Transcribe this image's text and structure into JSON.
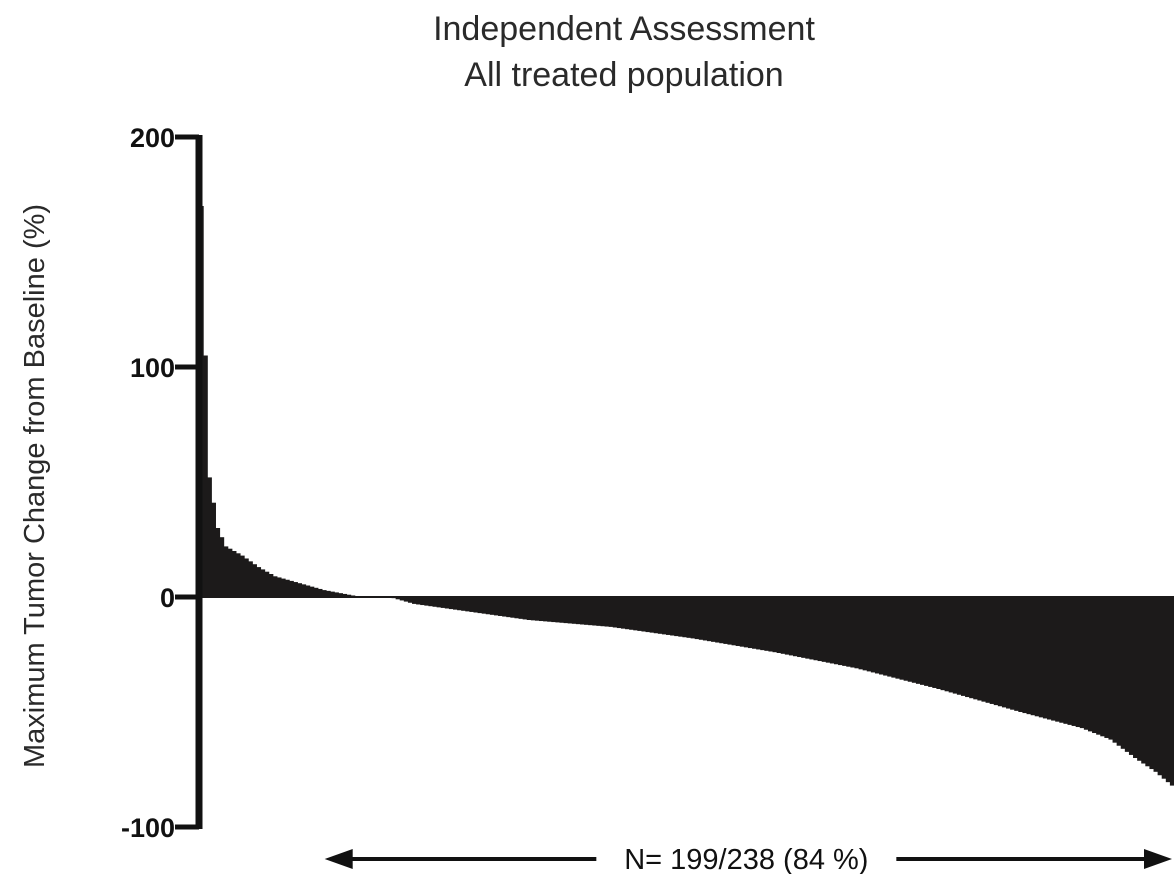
{
  "chart_data": {
    "type": "bar",
    "title": "Independent Assessment",
    "subtitle": "All treated population",
    "xlabel": "",
    "ylabel": "Maximum Tumor Change from Baseline (%)",
    "ylim": [
      -100,
      200
    ],
    "yticks": [
      {
        "value": 200,
        "label": "200"
      },
      {
        "value": 100,
        "label": "100"
      },
      {
        "value": 0,
        "label": "0"
      },
      {
        "value": -100,
        "label": "-100"
      }
    ],
    "n_bars": 238,
    "sorted": "descending",
    "grid": false,
    "annotation": "N= 199/238 (84 %)",
    "annotation_range_bars": [
      38,
      238
    ],
    "profile": [
      {
        "index": 0,
        "value": 170
      },
      {
        "index": 1,
        "value": 105
      },
      {
        "index": 2,
        "value": 52
      },
      {
        "index": 4,
        "value": 30
      },
      {
        "index": 6,
        "value": 22
      },
      {
        "index": 10,
        "value": 18
      },
      {
        "index": 14,
        "value": 13
      },
      {
        "index": 18,
        "value": 9
      },
      {
        "index": 24,
        "value": 6
      },
      {
        "index": 30,
        "value": 3
      },
      {
        "index": 36,
        "value": 1
      },
      {
        "index": 39,
        "value": 0
      },
      {
        "index": 46,
        "value": 0
      },
      {
        "index": 52,
        "value": -3
      },
      {
        "index": 60,
        "value": -5
      },
      {
        "index": 80,
        "value": -10
      },
      {
        "index": 100,
        "value": -13
      },
      {
        "index": 120,
        "value": -18
      },
      {
        "index": 140,
        "value": -24
      },
      {
        "index": 160,
        "value": -31
      },
      {
        "index": 180,
        "value": -40
      },
      {
        "index": 200,
        "value": -50
      },
      {
        "index": 215,
        "value": -57
      },
      {
        "index": 222,
        "value": -62
      },
      {
        "index": 228,
        "value": -70
      },
      {
        "index": 233,
        "value": -76
      },
      {
        "index": 237,
        "value": -82
      }
    ]
  }
}
